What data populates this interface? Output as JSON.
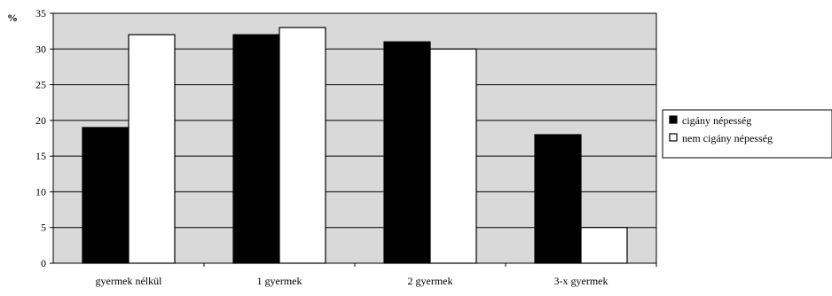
{
  "chart_data": {
    "type": "bar",
    "title": "",
    "xlabel": "",
    "ylabel": "%",
    "ylim": [
      0,
      35
    ],
    "yticks": [
      0,
      5,
      10,
      15,
      20,
      25,
      30,
      35
    ],
    "grid": true,
    "legend_position": "right",
    "plot_background": "#d9d9d9",
    "categories": [
      "gyermek nélkül",
      "1 gyermek",
      "2 gyermek",
      "3-x gyermek"
    ],
    "series": [
      {
        "name": "cigány népesség",
        "color": "#000000",
        "values": [
          19,
          32,
          31,
          18
        ]
      },
      {
        "name": "nem cigány népesség",
        "color": "#ffffff",
        "values": [
          32,
          33,
          30,
          5
        ]
      }
    ]
  }
}
